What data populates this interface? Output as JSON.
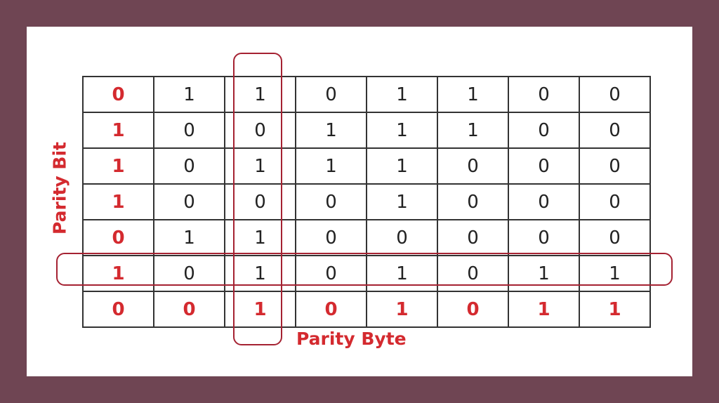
{
  "labels": {
    "parity_bit": "Parity Bit",
    "parity_byte": "Parity Byte"
  },
  "colors": {
    "background": "#6f4553",
    "highlight": "#a52232",
    "parity_text": "#d42a2f"
  },
  "rows": [
    [
      "0",
      "1",
      "1",
      "0",
      "1",
      "1",
      "0",
      "0"
    ],
    [
      "1",
      "0",
      "0",
      "1",
      "1",
      "1",
      "0",
      "0"
    ],
    [
      "1",
      "0",
      "1",
      "1",
      "1",
      "0",
      "0",
      "0"
    ],
    [
      "1",
      "0",
      "0",
      "0",
      "1",
      "0",
      "0",
      "0"
    ],
    [
      "0",
      "1",
      "1",
      "0",
      "0",
      "0",
      "0",
      "0"
    ],
    [
      "1",
      "0",
      "1",
      "0",
      "1",
      "0",
      "1",
      "1"
    ],
    [
      "0",
      "0",
      "1",
      "0",
      "1",
      "0",
      "1",
      "1"
    ]
  ]
}
